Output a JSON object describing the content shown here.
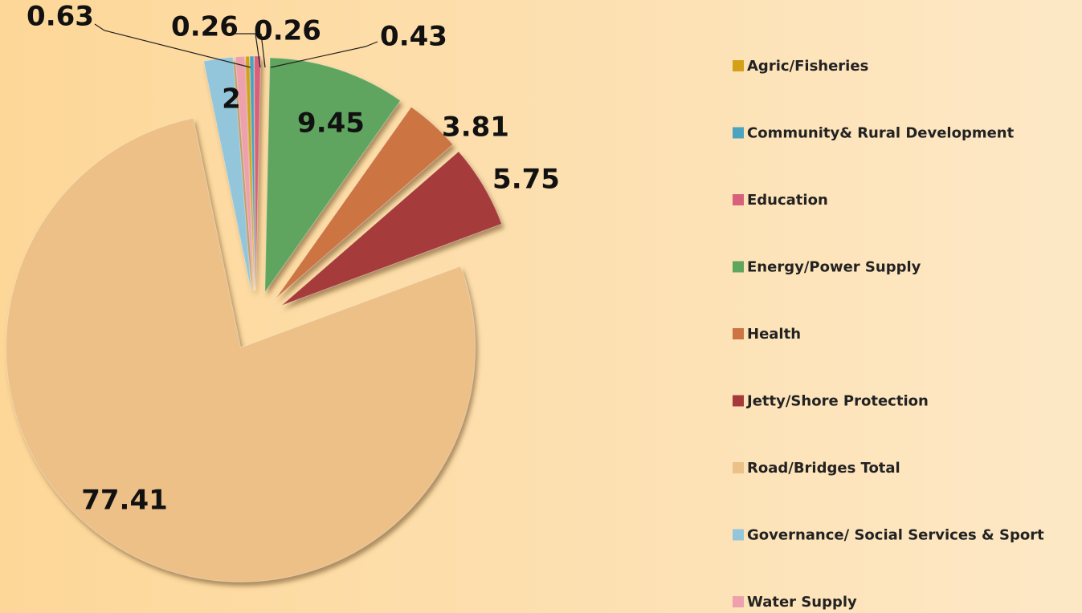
{
  "chart_data": {
    "type": "pie",
    "categories": [
      "Agric/Fisheries",
      "Community& Rural Development",
      "Education",
      "Energy/Power Supply",
      "Health",
      "Jetty/Shore Protection",
      "Road/Bridges Total",
      "Governance/ Social Services & Sport",
      "Water Supply"
    ],
    "values": [
      0.26,
      0.26,
      0.43,
      9.45,
      3.81,
      5.75,
      77.41,
      2,
      0.63
    ],
    "colors": [
      "#d4a017",
      "#4aa3bf",
      "#d9607a",
      "#5ea55e",
      "#cc7443",
      "#a63a3a",
      "#edc088",
      "#93c6db",
      "#efa0ad"
    ],
    "legend": "right"
  }
}
